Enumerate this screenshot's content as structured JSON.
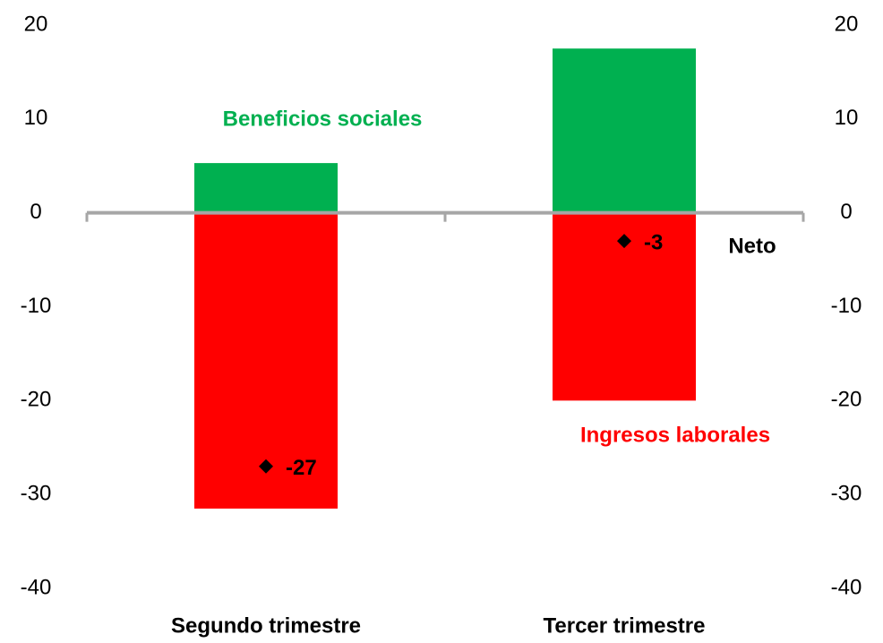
{
  "chart_data": {
    "type": "bar",
    "categories": [
      "Segundo trimestre",
      "Tercer trimestre"
    ],
    "series": [
      {
        "name": "Ingresos laborales",
        "color": "#ff0000",
        "values": [
          -31.5,
          -20
        ]
      },
      {
        "name": "Beneficios sociales",
        "color": "#00b050",
        "values": [
          5.3,
          17.5
        ]
      },
      {
        "name": "Neto",
        "color": "#000000",
        "type": "scatter",
        "values": [
          -27,
          -3
        ]
      }
    ],
    "stacked": true,
    "ylim": [
      -40,
      20
    ],
    "yticks": [
      20,
      10,
      0,
      -10,
      -20,
      -30,
      -40
    ],
    "y2lim": [
      -40,
      20
    ],
    "y2ticks": [
      20,
      10,
      0,
      -10,
      -20,
      -30,
      -40
    ],
    "grid": false
  }
}
